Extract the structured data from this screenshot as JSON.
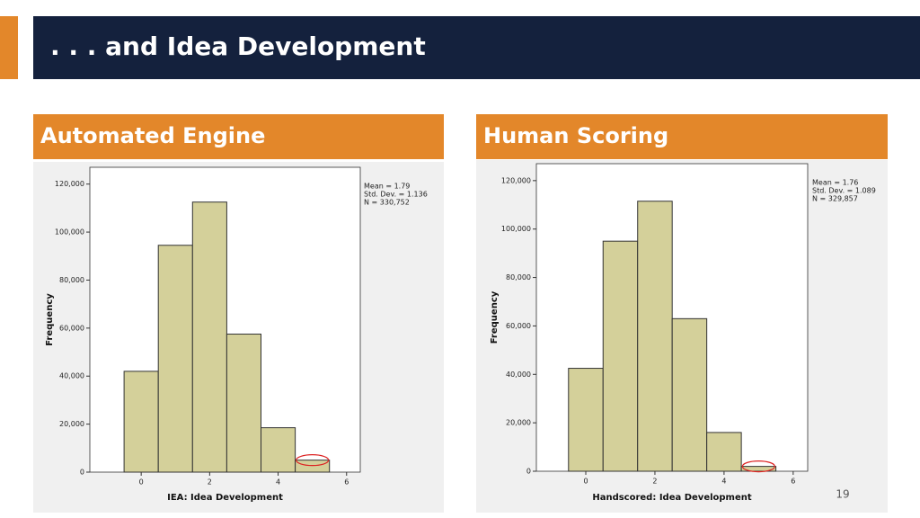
{
  "title": ". . . and Idea Development",
  "page_number": "19",
  "chart_data": [
    {
      "type": "histogram",
      "title": "Automated Engine",
      "x_label": "IEA: Idea Development",
      "y_label": "Frequency",
      "annotations": [
        "Mean = 1.79",
        "Std. Dev. = 1.136",
        "N = 330,752"
      ],
      "bins": [
        -0.5,
        0.5,
        1.5,
        2.5,
        3.5,
        4.5,
        5.5
      ],
      "values": [
        42000,
        94500,
        112500,
        57500,
        18500,
        5000
      ],
      "color": "#d4d09a",
      "xlim": [
        -1.5,
        6.4
      ],
      "xticks": [
        0,
        2,
        4,
        6
      ],
      "ylim": [
        0,
        127000
      ],
      "yticks": [
        0,
        {
          "value": 20000,
          "label": "20,000"
        },
        {
          "value": 40000,
          "label": "40,000"
        },
        {
          "value": 60000,
          "label": "60,000"
        },
        {
          "value": 80000,
          "label": "80,000"
        },
        {
          "value": 100000,
          "label": "100,000"
        },
        {
          "value": 120000,
          "label": "120,000"
        }
      ]
    },
    {
      "type": "histogram",
      "title": "Human Scoring",
      "x_label": "Handscored: Idea Development",
      "y_label": "Frequency",
      "annotations": [
        "Mean = 1.76",
        "Std. Dev. = 1.089",
        "N = 329,857"
      ],
      "bins": [
        -0.5,
        0.5,
        1.5,
        2.5,
        3.5,
        4.5,
        5.5
      ],
      "values": [
        42500,
        95000,
        111500,
        63000,
        16000,
        2000
      ],
      "color": "#d4d09a",
      "xlim": [
        -1.43,
        6.42
      ],
      "xticks": [
        0,
        2,
        4,
        6
      ],
      "ylim": [
        0,
        127000
      ],
      "yticks": [
        0,
        {
          "value": 20000,
          "label": "20,000"
        },
        {
          "value": 40000,
          "label": "40,000"
        },
        {
          "value": 60000,
          "label": "60,000"
        },
        {
          "value": 80000,
          "label": "80,000"
        },
        {
          "value": 100000,
          "label": "100,000"
        },
        {
          "value": 120000,
          "label": "120,000"
        }
      ]
    }
  ]
}
